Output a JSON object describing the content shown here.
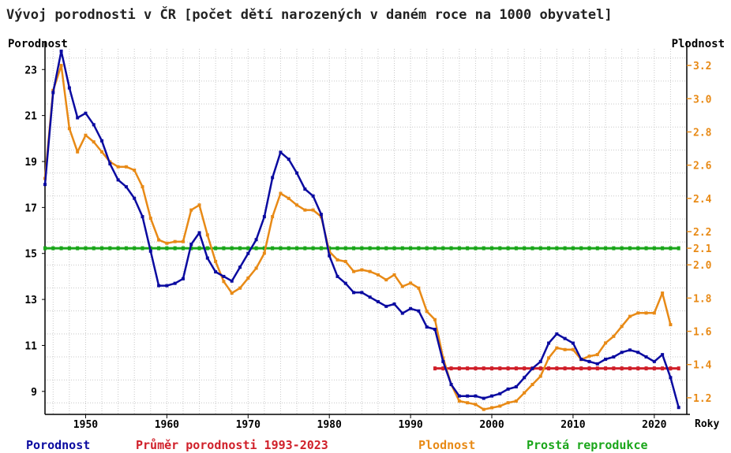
{
  "chart_data": {
    "type": "line",
    "title": "Vývoj porodnosti v ČR [počet dětí narozených v daném roce na 1000 obyvatel]",
    "y_left_label": "Porodnost",
    "y_right_label": "Plodnost",
    "x_label": "Roky",
    "x_ticks": [
      1950,
      1960,
      1970,
      1980,
      1990,
      2000,
      2010,
      2020
    ],
    "y_left_ticks": [
      9,
      11,
      13,
      15,
      17,
      19,
      21,
      23
    ],
    "y_right_ticks": [
      1.2,
      1.4,
      1.6,
      1.8,
      2.0,
      2.1,
      2.2,
      2.4,
      2.6,
      2.8,
      3.0,
      3.2
    ],
    "xlim": [
      1945,
      2024
    ],
    "ylim_left": [
      8.0,
      23.9
    ],
    "ylim_right": [
      1.1,
      3.3
    ],
    "colors": {
      "porodnost": "#0a0aa0",
      "plodnost": "#e88a16",
      "prumer": "#d0202a",
      "reprodukce": "#1aa61a",
      "grid": "#c8c8c8",
      "title": "#222222"
    },
    "series": [
      {
        "name": "Porodnost",
        "axis": "left",
        "x": [
          1945,
          1946,
          1947,
          1948,
          1949,
          1950,
          1951,
          1952,
          1953,
          1954,
          1955,
          1956,
          1957,
          1958,
          1959,
          1960,
          1961,
          1962,
          1963,
          1964,
          1965,
          1966,
          1967,
          1968,
          1969,
          1970,
          1971,
          1972,
          1973,
          1974,
          1975,
          1976,
          1977,
          1978,
          1979,
          1980,
          1981,
          1982,
          1983,
          1984,
          1985,
          1986,
          1987,
          1988,
          1989,
          1990,
          1991,
          1992,
          1993,
          1994,
          1995,
          1996,
          1997,
          1998,
          1999,
          2000,
          2001,
          2002,
          2003,
          2004,
          2005,
          2006,
          2007,
          2008,
          2009,
          2010,
          2011,
          2012,
          2013,
          2014,
          2015,
          2016,
          2017,
          2018,
          2019,
          2020,
          2021,
          2022,
          2023
        ],
        "values": [
          18.0,
          22.0,
          23.8,
          22.2,
          20.9,
          21.1,
          20.6,
          19.9,
          18.9,
          18.2,
          17.9,
          17.4,
          16.6,
          15.1,
          13.6,
          13.6,
          13.7,
          13.9,
          15.4,
          15.9,
          14.8,
          14.2,
          14.0,
          13.8,
          14.4,
          15.0,
          15.6,
          16.6,
          18.3,
          19.4,
          19.1,
          18.5,
          17.8,
          17.5,
          16.7,
          14.9,
          14.0,
          13.7,
          13.3,
          13.3,
          13.1,
          12.9,
          12.7,
          12.8,
          12.4,
          12.6,
          12.5,
          11.8,
          11.7,
          10.3,
          9.3,
          8.8,
          8.8,
          8.8,
          8.7,
          8.8,
          8.9,
          9.1,
          9.2,
          9.6,
          10.0,
          10.3,
          11.1,
          11.5,
          11.3,
          11.1,
          10.4,
          10.3,
          10.2,
          10.4,
          10.5,
          10.7,
          10.8,
          10.7,
          10.5,
          10.3,
          10.6,
          9.6,
          8.3
        ]
      },
      {
        "name": "Plodnost",
        "axis": "right",
        "x": [
          1945,
          1946,
          1947,
          1948,
          1949,
          1950,
          1951,
          1952,
          1953,
          1954,
          1955,
          1956,
          1957,
          1958,
          1959,
          1960,
          1961,
          1962,
          1963,
          1964,
          1965,
          1966,
          1967,
          1968,
          1969,
          1970,
          1971,
          1972,
          1973,
          1974,
          1975,
          1976,
          1977,
          1978,
          1979,
          1980,
          1981,
          1982,
          1983,
          1984,
          1985,
          1986,
          1987,
          1988,
          1989,
          1990,
          1991,
          1992,
          1993,
          1994,
          1995,
          1996,
          1997,
          1998,
          1999,
          2000,
          2001,
          2002,
          2003,
          2004,
          2005,
          2006,
          2007,
          2008,
          2009,
          2010,
          2011,
          2012,
          2013,
          2014,
          2015,
          2016,
          2017,
          2018,
          2019,
          2020,
          2021,
          2022,
          2023
        ],
        "values": [
          2.52,
          3.05,
          3.2,
          2.82,
          2.68,
          2.78,
          2.74,
          2.68,
          2.62,
          2.59,
          2.59,
          2.57,
          2.47,
          2.28,
          2.15,
          2.13,
          2.14,
          2.14,
          2.33,
          2.36,
          2.18,
          2.02,
          1.9,
          1.83,
          1.86,
          1.92,
          1.98,
          2.07,
          2.29,
          2.43,
          2.4,
          2.36,
          2.33,
          2.33,
          2.29,
          2.08,
          2.03,
          2.02,
          1.96,
          1.97,
          1.96,
          1.94,
          1.91,
          1.94,
          1.87,
          1.89,
          1.86,
          1.72,
          1.67,
          1.44,
          1.28,
          1.18,
          1.17,
          1.16,
          1.13,
          1.14,
          1.15,
          1.17,
          1.18,
          1.23,
          1.28,
          1.33,
          1.44,
          1.5,
          1.49,
          1.49,
          1.43,
          1.45,
          1.46,
          1.53,
          1.57,
          1.63,
          1.69,
          1.71,
          1.71,
          1.71,
          1.83,
          1.64,
          null
        ]
      },
      {
        "name": "Průměr porodnosti 1993-2023",
        "axis": "left",
        "x": [
          1993,
          2023
        ],
        "values": [
          10.0,
          10.0
        ]
      },
      {
        "name": "Prostá reprodukce",
        "axis": "right",
        "x": [
          1945,
          2023
        ],
        "values": [
          2.1,
          2.1
        ]
      }
    ],
    "legend": [
      {
        "label": "Porodnost",
        "color": "#0a0aa0"
      },
      {
        "label": "Průměr porodnosti 1993-2023",
        "color": "#d0202a"
      },
      {
        "label": "Plodnost",
        "color": "#e88a16"
      },
      {
        "label": "Prostá reprodukce",
        "color": "#1aa61a"
      }
    ],
    "legend_position": "bottom",
    "grid": true
  }
}
